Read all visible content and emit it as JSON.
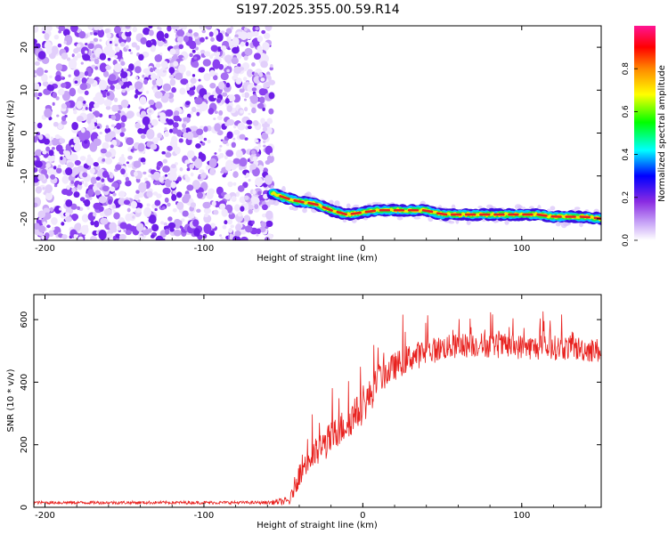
{
  "figure_title": "S197.2025.355.00.59.R14",
  "colors": {
    "axis": "#000000",
    "snr_line": "#e8211e",
    "noise_purple": "#7a2cf0",
    "noise_light": "#c9a6f7",
    "track_red": "#e8211e"
  },
  "chart_data": [
    {
      "type": "heatmap",
      "title": "",
      "xlabel": "Height of straight line (km)",
      "ylabel": "Frequency (Hz)",
      "xlim": [
        -207,
        150
      ],
      "ylim": [
        -25,
        25
      ],
      "xticks": [
        -200,
        -100,
        0,
        100
      ],
      "yticks": [
        -20,
        -10,
        0,
        10,
        20
      ],
      "noise_region_x": [
        -207,
        -57
      ],
      "track": {
        "x": [
          -57,
          -50,
          -40,
          -30,
          -20,
          -10,
          0,
          10,
          20,
          30,
          40,
          50,
          60,
          80,
          100,
          110,
          120,
          140,
          150
        ],
        "freq": [
          -14,
          -15,
          -16,
          -16.5,
          -18,
          -19,
          -18.5,
          -18,
          -18,
          -18,
          -18,
          -19,
          -19,
          -19,
          -19,
          -19,
          -19.5,
          -19.5,
          -20
        ]
      },
      "colorbar": {
        "label": "Normalized spectral amplitude",
        "range": [
          0,
          1
        ],
        "ticks": [
          "0.0",
          "0.2",
          "0.4",
          "0.6",
          "0.8"
        ],
        "colormap": [
          "#ffffff",
          "#8a2be2",
          "#0000ff",
          "#00ffff",
          "#00ff00",
          "#ffff00",
          "#ff8800",
          "#ff0000",
          "#ff1493"
        ]
      }
    },
    {
      "type": "line",
      "title": "",
      "xlabel": "Height of straight line (km)",
      "ylabel": "SNR (10 * v/v)",
      "xlim": [
        -207,
        150
      ],
      "ylim": [
        0,
        680
      ],
      "xticks": [
        -200,
        -100,
        0,
        100
      ],
      "yticks": [
        0,
        200,
        400,
        600
      ],
      "series": [
        {
          "name": "SNR",
          "color": "#e8211e",
          "x": [
            -207,
            -150,
            -100,
            -60,
            -46,
            -42,
            -38,
            -30,
            -20,
            -10,
            0,
            5,
            10,
            20,
            30,
            50,
            70,
            90,
            110,
            130,
            150
          ],
          "y": [
            15,
            15,
            15,
            15,
            20,
            80,
            130,
            170,
            220,
            270,
            320,
            360,
            410,
            450,
            480,
            510,
            520,
            515,
            510,
            510,
            500
          ],
          "spread": [
            10,
            10,
            10,
            10,
            30,
            70,
            90,
            100,
            110,
            110,
            110,
            110,
            100,
            90,
            90,
            80,
            80,
            80,
            80,
            80,
            80
          ]
        }
      ]
    }
  ]
}
